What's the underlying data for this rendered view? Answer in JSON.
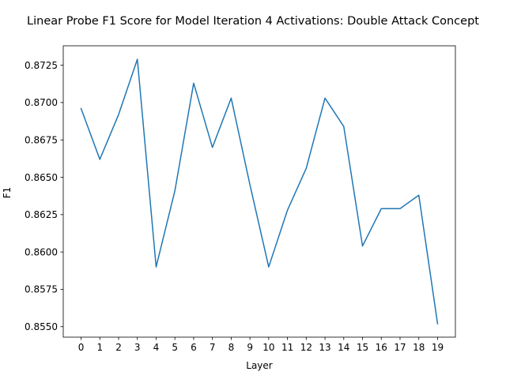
{
  "chart_data": {
    "type": "line",
    "title": "Linear Probe F1 Score for Model Iteration 4 Activations: Double Attack Concept",
    "xlabel": "Layer",
    "ylabel": "F1",
    "x": [
      0,
      1,
      2,
      3,
      4,
      5,
      6,
      7,
      8,
      9,
      10,
      11,
      12,
      13,
      14,
      15,
      16,
      17,
      18,
      19
    ],
    "x_tick_labels": [
      "0",
      "1",
      "2",
      "3",
      "4",
      "5",
      "6",
      "7",
      "8",
      "9",
      "10",
      "11",
      "12",
      "13",
      "14",
      "15",
      "16",
      "17",
      "18",
      "19"
    ],
    "xlim": [
      -0.95,
      19.95
    ],
    "ylim": [
      0.8543,
      0.8738
    ],
    "y_ticks": [
      0.855,
      0.8575,
      0.86,
      0.8625,
      0.865,
      0.8675,
      0.87,
      0.8725
    ],
    "y_tick_labels": [
      "0.8550",
      "0.8575",
      "0.8600",
      "0.8625",
      "0.8650",
      "0.8675",
      "0.8700",
      "0.8725"
    ],
    "grid": false,
    "series": [
      {
        "color": "#1f77b4",
        "values": [
          0.8696,
          0.8662,
          0.8692,
          0.8729,
          0.859,
          0.8641,
          0.8713,
          0.867,
          0.8703,
          0.8645,
          0.859,
          0.8628,
          0.8656,
          0.8703,
          0.8684,
          0.8604,
          0.8629,
          0.8629,
          0.8638,
          0.8552
        ]
      }
    ]
  }
}
